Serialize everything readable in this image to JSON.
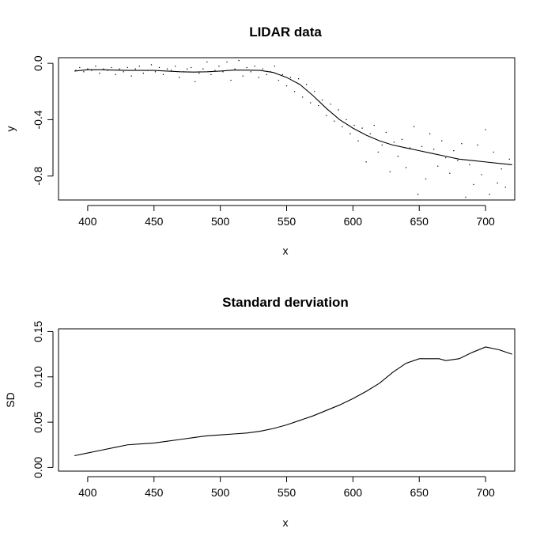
{
  "chart_data": [
    {
      "type": "scatter",
      "title": "LIDAR data",
      "xlabel": "x",
      "ylabel": "y",
      "xlim": [
        378,
        722
      ],
      "ylim": [
        -0.97,
        0.04
      ],
      "xticks": [
        400,
        450,
        500,
        550,
        600,
        650,
        700
      ],
      "yticks": [
        0.0,
        -0.4,
        -0.8
      ],
      "ytick_labels": [
        "0.0",
        "-0.4",
        "-0.8"
      ],
      "grid": false,
      "series": [
        {
          "kind": "points",
          "x": [
            391,
            394,
            397,
            400,
            403,
            406,
            409,
            412,
            415,
            418,
            421,
            424,
            427,
            430,
            433,
            436,
            439,
            442,
            445,
            448,
            451,
            454,
            457,
            460,
            463,
            466,
            469,
            472,
            475,
            478,
            481,
            484,
            487,
            490,
            493,
            496,
            499,
            502,
            505,
            508,
            511,
            514,
            517,
            520,
            523,
            526,
            529,
            532,
            535,
            538,
            541,
            544,
            547,
            550,
            553,
            556,
            559,
            562,
            565,
            568,
            571,
            574,
            577,
            580,
            583,
            586,
            589,
            592,
            595,
            598,
            601,
            604,
            607,
            610,
            613,
            616,
            619,
            622,
            625,
            628,
            631,
            634,
            637,
            640,
            643,
            646,
            649,
            652,
            655,
            658,
            661,
            664,
            667,
            670,
            673,
            676,
            679,
            682,
            685,
            688,
            691,
            694,
            697,
            700,
            703,
            706,
            709,
            712,
            715,
            718
          ],
          "y": [
            -0.05,
            -0.03,
            -0.06,
            -0.04,
            -0.05,
            -0.02,
            -0.07,
            -0.04,
            -0.05,
            -0.03,
            -0.08,
            -0.04,
            -0.06,
            -0.03,
            -0.09,
            -0.04,
            -0.02,
            -0.07,
            -0.05,
            -0.01,
            -0.06,
            -0.03,
            -0.08,
            -0.04,
            -0.05,
            -0.02,
            -0.1,
            -0.06,
            -0.04,
            -0.03,
            -0.13,
            -0.07,
            -0.04,
            0.01,
            -0.08,
            -0.05,
            -0.02,
            -0.06,
            0.01,
            -0.12,
            -0.04,
            0.02,
            -0.09,
            -0.03,
            -0.06,
            -0.02,
            -0.1,
            -0.04,
            -0.08,
            -0.06,
            -0.02,
            -0.12,
            -0.08,
            -0.16,
            -0.1,
            -0.2,
            -0.11,
            -0.24,
            -0.15,
            -0.28,
            -0.2,
            -0.3,
            -0.26,
            -0.37,
            -0.29,
            -0.41,
            -0.33,
            -0.45,
            -0.4,
            -0.5,
            -0.44,
            -0.55,
            -0.46,
            -0.7,
            -0.5,
            -0.44,
            -0.63,
            -0.58,
            -0.49,
            -0.77,
            -0.56,
            -0.66,
            -0.54,
            -0.74,
            -0.6,
            -0.45,
            -0.93,
            -0.59,
            -0.82,
            -0.5,
            -0.61,
            -0.73,
            -0.55,
            -0.67,
            -0.78,
            -0.62,
            -0.69,
            -0.57,
            -0.95,
            -0.72,
            -0.86,
            -0.58,
            -0.79,
            -0.47,
            -0.93,
            -0.63,
            -0.85,
            -0.75,
            -0.88,
            -0.68
          ],
          "point_radius": 0.7
        },
        {
          "kind": "line",
          "x": [
            390,
            400,
            410,
            420,
            430,
            440,
            450,
            460,
            470,
            480,
            490,
            500,
            510,
            520,
            530,
            540,
            550,
            560,
            570,
            580,
            590,
            600,
            610,
            620,
            630,
            640,
            650,
            660,
            670,
            680,
            690,
            700,
            710,
            720
          ],
          "y": [
            -0.055,
            -0.045,
            -0.045,
            -0.048,
            -0.05,
            -0.05,
            -0.05,
            -0.055,
            -0.06,
            -0.062,
            -0.06,
            -0.055,
            -0.048,
            -0.048,
            -0.05,
            -0.065,
            -0.1,
            -0.15,
            -0.23,
            -0.32,
            -0.4,
            -0.46,
            -0.51,
            -0.55,
            -0.58,
            -0.6,
            -0.62,
            -0.64,
            -0.66,
            -0.68,
            -0.69,
            -0.7,
            -0.71,
            -0.72
          ]
        }
      ]
    },
    {
      "type": "line",
      "title": "Standard derviation",
      "xlabel": "x",
      "ylabel": "SD",
      "xlim": [
        378,
        722
      ],
      "ylim": [
        -0.004,
        0.153
      ],
      "xticks": [
        400,
        450,
        500,
        550,
        600,
        650,
        700
      ],
      "yticks": [
        0.0,
        0.05,
        0.1,
        0.15
      ],
      "ytick_labels": [
        "0.00",
        "0.05",
        "0.10",
        "0.15"
      ],
      "grid": false,
      "series": [
        {
          "kind": "line",
          "x": [
            390,
            400,
            410,
            420,
            430,
            440,
            450,
            460,
            470,
            480,
            490,
            500,
            510,
            520,
            530,
            540,
            550,
            560,
            570,
            580,
            590,
            600,
            610,
            620,
            630,
            640,
            650,
            660,
            665,
            670,
            680,
            690,
            700,
            710,
            720
          ],
          "y": [
            0.013,
            0.016,
            0.019,
            0.022,
            0.025,
            0.026,
            0.027,
            0.029,
            0.031,
            0.033,
            0.035,
            0.036,
            0.037,
            0.038,
            0.04,
            0.043,
            0.047,
            0.052,
            0.057,
            0.063,
            0.069,
            0.076,
            0.084,
            0.093,
            0.105,
            0.115,
            0.12,
            0.12,
            0.12,
            0.118,
            0.12,
            0.127,
            0.133,
            0.13,
            0.125
          ]
        }
      ]
    }
  ]
}
